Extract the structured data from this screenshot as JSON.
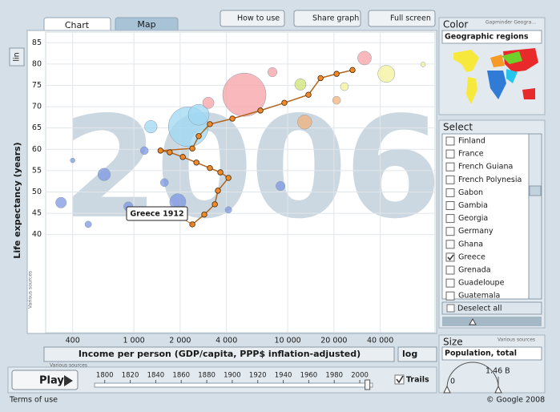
{
  "toolbar": {
    "tabs": [
      "Chart",
      "Map"
    ],
    "buttons": [
      "How to use",
      "Share graph",
      "Full screen"
    ]
  },
  "y_scale_toggle": "lin",
  "chart_data": {
    "type": "bubble",
    "year_label": "2006",
    "y_label": "Life expectancy (years)",
    "x_label": "Income per person (GDP/capita, PPP$ inflation-adjusted)",
    "x_scale_label": "log",
    "source_note": "Various sources",
    "log_x": true,
    "grid": true,
    "xlim": [
      267,
      90800
    ],
    "ylim": [
      17,
      87.5
    ],
    "xticks": [
      400,
      {
        "value": 1000,
        "label": "1 000"
      },
      {
        "value": 2000,
        "label": "2 000"
      },
      {
        "value": 4000,
        "label": "4 000"
      },
      {
        "value": 10000,
        "label": "10 000"
      },
      {
        "value": 20000,
        "label": "20 000"
      },
      {
        "value": 40000,
        "label": "40 000"
      }
    ],
    "yticks": [
      40,
      45,
      50,
      55,
      60,
      65,
      70,
      75,
      80,
      85
    ],
    "bubbles": {
      "x": [
        5230,
        2260,
        1930,
        641,
        336,
        12900,
        31600,
        43800,
        2640,
        1290,
        3050,
        8980,
        920,
        1580,
        12100,
        23400,
        505,
        1170,
        20800,
        7960,
        75900,
        4120,
        400
      ],
      "y": [
        72.8,
        65.3,
        47.7,
        54.1,
        47.5,
        66.4,
        81.4,
        77.7,
        68.1,
        65.3,
        70.9,
        51.4,
        46.6,
        52.2,
        75.2,
        74.7,
        42.4,
        59.7,
        71.5,
        78.1,
        79.9,
        45.8,
        57.4
      ],
      "size": [
        1300,
        1100,
        180,
        110,
        80,
        140,
        130,
        200,
        300,
        110,
        90,
        60,
        60,
        45,
        90,
        45,
        30,
        45,
        45,
        60,
        16,
        30,
        16
      ],
      "colors": [
        "#f7a1a6",
        "#9fd8f2",
        "#7d97e0",
        "#7d97e0",
        "#7d97e0",
        "#f2b27a",
        "#f7a1a6",
        "#f4f19a",
        "#9fd8f2",
        "#9fd8f2",
        "#f7a1a6",
        "#7d97e0",
        "#7d97e0",
        "#7d97e0",
        "#cfe372",
        "#f4f19a",
        "#7d97e0",
        "#7d97e0",
        "#f2b27a",
        "#f7a1a6",
        "#f4f19a",
        "#7d97e0",
        "#7d97e0"
      ]
    },
    "trail": {
      "label": "Greece 1912",
      "color": "#ee8a2a",
      "x": [
        2400,
        2870,
        3360,
        3520,
        4120,
        3650,
        3120,
        2550,
        2080,
        1710,
        1490,
        2400,
        2640,
        3120,
        4370,
        6650,
        9520,
        13650,
        16360,
        20800,
        26400
      ],
      "y": [
        42.4,
        44.7,
        47.1,
        50.3,
        53.3,
        54.6,
        55.6,
        56.9,
        58.2,
        59.3,
        59.7,
        60.2,
        63.1,
        65.9,
        67.2,
        69.1,
        70.9,
        72.8,
        76.7,
        77.7,
        78.6
      ]
    }
  },
  "color_panel": {
    "title": "Color",
    "source": "Gapminder Geogra...",
    "selector": "Geographic regions"
  },
  "select_panel": {
    "title": "Select",
    "deselect": "Deselect all",
    "items": [
      {
        "label": "Finland",
        "checked": false
      },
      {
        "label": "France",
        "checked": false
      },
      {
        "label": "French Guiana",
        "checked": false
      },
      {
        "label": "French Polynesia",
        "checked": false
      },
      {
        "label": "Gabon",
        "checked": false
      },
      {
        "label": "Gambia",
        "checked": false
      },
      {
        "label": "Georgia",
        "checked": false
      },
      {
        "label": "Germany",
        "checked": false
      },
      {
        "label": "Ghana",
        "checked": false
      },
      {
        "label": "Greece",
        "checked": true
      },
      {
        "label": "Grenada",
        "checked": false
      },
      {
        "label": "Guadeloupe",
        "checked": false
      },
      {
        "label": "Guatemala",
        "checked": false
      }
    ]
  },
  "size_panel": {
    "title": "Size",
    "source": "Various sources",
    "selector": "Population, total",
    "min_label": "0",
    "max_label": "1.46 B"
  },
  "player": {
    "button": "Play",
    "trails_label": "Trails",
    "trails_checked": true,
    "range": [
      1792,
      2010
    ],
    "value": 2006,
    "ticks": [
      1800,
      1820,
      1840,
      1860,
      1880,
      1900,
      1920,
      1940,
      1960,
      1980,
      2000
    ]
  },
  "footer": {
    "terms": "Terms of use",
    "copyright": "© Google 2008"
  }
}
